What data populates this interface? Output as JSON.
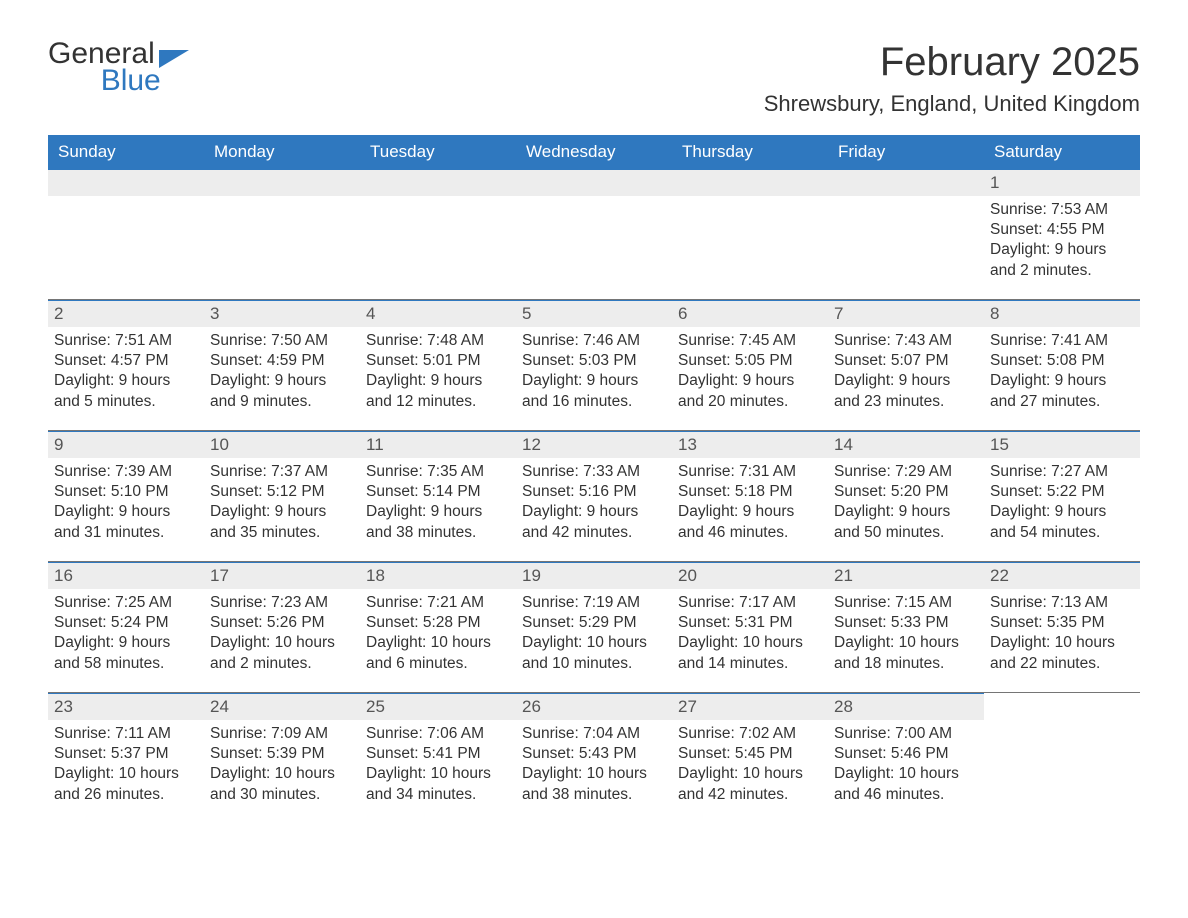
{
  "logo": {
    "line1": "General",
    "line2": "Blue"
  },
  "title": "February 2025",
  "location": "Shrewsbury, England, United Kingdom",
  "colors": {
    "header_bg": "#2f78bf",
    "header_fg": "#ffffff",
    "daynum_bg": "#ededed",
    "daynum_border_top": "#2f78bf",
    "week_sep": "#757575",
    "text": "#333333",
    "logo_blue": "#2f78bf",
    "page_bg": "#ffffff"
  },
  "fonts": {
    "title_pt": 40,
    "location_pt": 22,
    "dow_pt": 17,
    "body_pt": 15.5,
    "logo_pt": 30,
    "family": "Arial"
  },
  "days_of_week": [
    "Sunday",
    "Monday",
    "Tuesday",
    "Wednesday",
    "Thursday",
    "Friday",
    "Saturday"
  ],
  "weeks": [
    [
      null,
      null,
      null,
      null,
      null,
      null,
      {
        "n": "1",
        "sunrise": "7:53 AM",
        "sunset": "4:55 PM",
        "daylight_h": "9",
        "daylight_m": "2"
      }
    ],
    [
      {
        "n": "2",
        "sunrise": "7:51 AM",
        "sunset": "4:57 PM",
        "daylight_h": "9",
        "daylight_m": "5"
      },
      {
        "n": "3",
        "sunrise": "7:50 AM",
        "sunset": "4:59 PM",
        "daylight_h": "9",
        "daylight_m": "9"
      },
      {
        "n": "4",
        "sunrise": "7:48 AM",
        "sunset": "5:01 PM",
        "daylight_h": "9",
        "daylight_m": "12"
      },
      {
        "n": "5",
        "sunrise": "7:46 AM",
        "sunset": "5:03 PM",
        "daylight_h": "9",
        "daylight_m": "16"
      },
      {
        "n": "6",
        "sunrise": "7:45 AM",
        "sunset": "5:05 PM",
        "daylight_h": "9",
        "daylight_m": "20"
      },
      {
        "n": "7",
        "sunrise": "7:43 AM",
        "sunset": "5:07 PM",
        "daylight_h": "9",
        "daylight_m": "23"
      },
      {
        "n": "8",
        "sunrise": "7:41 AM",
        "sunset": "5:08 PM",
        "daylight_h": "9",
        "daylight_m": "27"
      }
    ],
    [
      {
        "n": "9",
        "sunrise": "7:39 AM",
        "sunset": "5:10 PM",
        "daylight_h": "9",
        "daylight_m": "31"
      },
      {
        "n": "10",
        "sunrise": "7:37 AM",
        "sunset": "5:12 PM",
        "daylight_h": "9",
        "daylight_m": "35"
      },
      {
        "n": "11",
        "sunrise": "7:35 AM",
        "sunset": "5:14 PM",
        "daylight_h": "9",
        "daylight_m": "38"
      },
      {
        "n": "12",
        "sunrise": "7:33 AM",
        "sunset": "5:16 PM",
        "daylight_h": "9",
        "daylight_m": "42"
      },
      {
        "n": "13",
        "sunrise": "7:31 AM",
        "sunset": "5:18 PM",
        "daylight_h": "9",
        "daylight_m": "46"
      },
      {
        "n": "14",
        "sunrise": "7:29 AM",
        "sunset": "5:20 PM",
        "daylight_h": "9",
        "daylight_m": "50"
      },
      {
        "n": "15",
        "sunrise": "7:27 AM",
        "sunset": "5:22 PM",
        "daylight_h": "9",
        "daylight_m": "54"
      }
    ],
    [
      {
        "n": "16",
        "sunrise": "7:25 AM",
        "sunset": "5:24 PM",
        "daylight_h": "9",
        "daylight_m": "58"
      },
      {
        "n": "17",
        "sunrise": "7:23 AM",
        "sunset": "5:26 PM",
        "daylight_h": "10",
        "daylight_m": "2"
      },
      {
        "n": "18",
        "sunrise": "7:21 AM",
        "sunset": "5:28 PM",
        "daylight_h": "10",
        "daylight_m": "6"
      },
      {
        "n": "19",
        "sunrise": "7:19 AM",
        "sunset": "5:29 PM",
        "daylight_h": "10",
        "daylight_m": "10"
      },
      {
        "n": "20",
        "sunrise": "7:17 AM",
        "sunset": "5:31 PM",
        "daylight_h": "10",
        "daylight_m": "14"
      },
      {
        "n": "21",
        "sunrise": "7:15 AM",
        "sunset": "5:33 PM",
        "daylight_h": "10",
        "daylight_m": "18"
      },
      {
        "n": "22",
        "sunrise": "7:13 AM",
        "sunset": "5:35 PM",
        "daylight_h": "10",
        "daylight_m": "22"
      }
    ],
    [
      {
        "n": "23",
        "sunrise": "7:11 AM",
        "sunset": "5:37 PM",
        "daylight_h": "10",
        "daylight_m": "26"
      },
      {
        "n": "24",
        "sunrise": "7:09 AM",
        "sunset": "5:39 PM",
        "daylight_h": "10",
        "daylight_m": "30"
      },
      {
        "n": "25",
        "sunrise": "7:06 AM",
        "sunset": "5:41 PM",
        "daylight_h": "10",
        "daylight_m": "34"
      },
      {
        "n": "26",
        "sunrise": "7:04 AM",
        "sunset": "5:43 PM",
        "daylight_h": "10",
        "daylight_m": "38"
      },
      {
        "n": "27",
        "sunrise": "7:02 AM",
        "sunset": "5:45 PM",
        "daylight_h": "10",
        "daylight_m": "42"
      },
      {
        "n": "28",
        "sunrise": "7:00 AM",
        "sunset": "5:46 PM",
        "daylight_h": "10",
        "daylight_m": "46"
      },
      null
    ]
  ],
  "labels": {
    "sunrise": "Sunrise: ",
    "sunset": "Sunset: ",
    "daylight_prefix": "Daylight: ",
    "daylight_mid": " hours and ",
    "daylight_suffix": " minutes."
  }
}
